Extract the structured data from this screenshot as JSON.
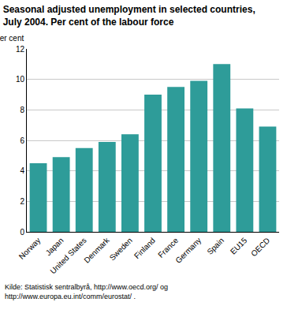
{
  "chart_data": {
    "type": "bar",
    "title": [
      "Seasonal adjusted unemployment in selected countries,",
      "July 2004. Per cent of the labour force"
    ],
    "y_label": "Per cent",
    "categories": [
      "Norway",
      "Japan",
      "United States",
      "Denmark",
      "Sweden",
      "Finland",
      "France",
      "Germany",
      "Spain",
      "EU15",
      "OECD"
    ],
    "values": [
      4.5,
      4.9,
      5.5,
      5.9,
      6.4,
      9.0,
      9.5,
      9.9,
      11.0,
      8.1,
      6.9
    ],
    "color": "#2e9c99",
    "ylim": [
      0,
      12
    ],
    "yticks": [
      0,
      2,
      4,
      6,
      8,
      10,
      12
    ],
    "grid": true,
    "source": [
      "Kilde: Statistisk sentralbyrå, http://www.oecd.org/ og",
      "http://www.europa.eu.int/comm/eurostat/ ."
    ]
  }
}
